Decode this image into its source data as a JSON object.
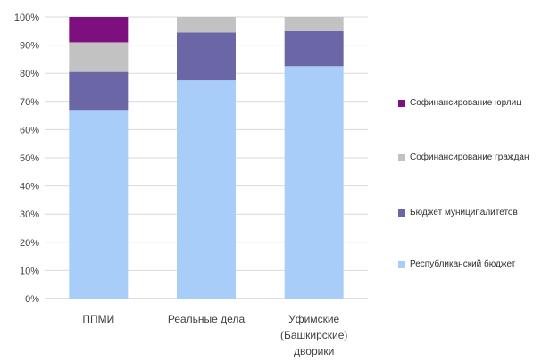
{
  "chart_data": {
    "type": "bar",
    "stacked": true,
    "percent": true,
    "categories": [
      "ППМИ",
      "Реальные дела",
      "Уфимские (Башкирские) дворики"
    ],
    "series": [
      {
        "name": "Республиканский бюджет",
        "color": "#a8cdf8",
        "values": [
          67,
          77.5,
          82.5
        ]
      },
      {
        "name": "Бюджет муниципалитетов",
        "color": "#6b66a6",
        "values": [
          13.5,
          17,
          12.5
        ]
      },
      {
        "name": "Софинансирование граждан",
        "color": "#c2c2c2",
        "values": [
          10.5,
          5.5,
          5
        ]
      },
      {
        "name": "Софинансирование юрлиц",
        "color": "#7e0f7e",
        "values": [
          9,
          0,
          0
        ]
      }
    ],
    "ylim": [
      0,
      100
    ],
    "yticks": [
      "0%",
      "10%",
      "20%",
      "30%",
      "40%",
      "50%",
      "60%",
      "70%",
      "80%",
      "90%",
      "100%"
    ],
    "grid": true,
    "legend_position": "right"
  }
}
